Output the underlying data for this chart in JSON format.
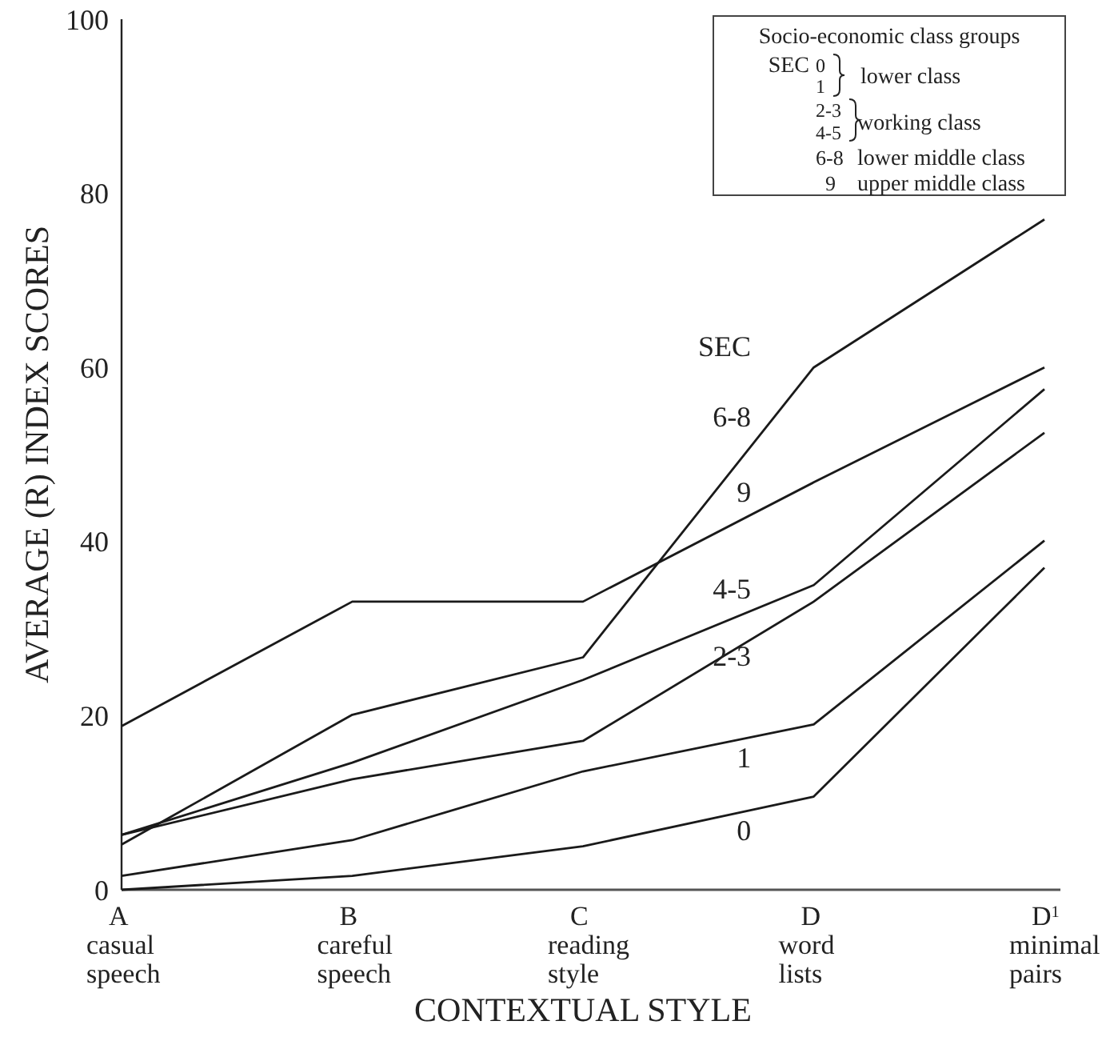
{
  "chart_data": {
    "type": "line",
    "xlabel": "CONTEXTUAL STYLE",
    "ylabel": "AVERAGE (R) INDEX SCORES",
    "categories": [
      "A\ncasual\nspeech",
      "B\ncareful\nspeech",
      "C\nreading\nstyle",
      "D\nword\nlists",
      "D$^{1}$\nminimal\npairs"
    ],
    "ylim": [
      0,
      100
    ],
    "yticks": [
      0,
      20,
      40,
      60,
      80,
      100
    ],
    "grid": false,
    "legend": "top right",
    "marker": "none",
    "line_style": "solid",
    "series": [
      {
        "name": "6-8",
        "color": "#1a1a1a",
        "values": [
          5.2,
          20.1,
          26.7,
          60,
          77
        ]
      },
      {
        "name": "9",
        "color": "#1a1a1a",
        "values": [
          18.8,
          33.1,
          33.1,
          46.8,
          60
        ]
      },
      {
        "name": "4-5",
        "color": "#1a1a1a",
        "values": [
          6.3,
          14.6,
          24.1,
          35,
          57.5
        ]
      },
      {
        "name": "2-3",
        "color": "#1a1a1a",
        "values": [
          6.3,
          12.7,
          17.1,
          33.1,
          52.5
        ]
      },
      {
        "name": "1",
        "color": "#1a1a1a",
        "values": [
          1.6,
          5.7,
          13.6,
          19,
          40.1
        ]
      },
      {
        "name": "0",
        "color": "#1a1a1a",
        "values": [
          0,
          1.6,
          5,
          10.7,
          37
        ]
      }
    ],
    "annotations": [
      "SEC",
      "Socio-economic class groups",
      "SEC",
      "0",
      "1",
      "lower class",
      "2-3",
      "4-5",
      "working class",
      "6-8",
      "lower middle class",
      "9",
      "upper middle class"
    ]
  }
}
